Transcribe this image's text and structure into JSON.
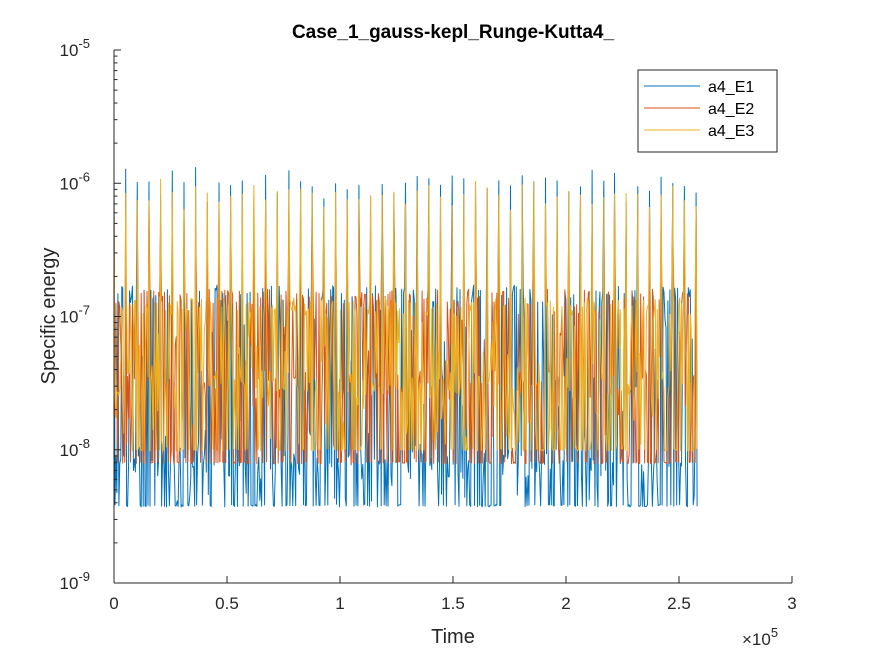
{
  "chart_data": {
    "type": "line",
    "title": "Case_1_gauss-kepl_Runge-Kutta4_",
    "xlabel": "Time",
    "ylabel": "Specific energy",
    "x_exponent_label": "×10",
    "x_exponent": "5",
    "xlim": [
      0,
      300000
    ],
    "ylim": [
      1e-09,
      1e-05
    ],
    "yscale": "log",
    "x_tick_values": [
      0,
      50000,
      100000,
      150000,
      200000,
      250000,
      300000
    ],
    "x_tick_labels": [
      "0",
      "0.5",
      "1",
      "1.5",
      "2",
      "2.5",
      "3"
    ],
    "y_tick_values": [
      1e-09,
      1e-08,
      1e-07,
      1e-06,
      1e-05
    ],
    "y_tick_labels": [
      {
        "base": "10",
        "exp": "-9"
      },
      {
        "base": "10",
        "exp": "-8"
      },
      {
        "base": "10",
        "exp": "-7"
      },
      {
        "base": "10",
        "exp": "-6"
      },
      {
        "base": "10",
        "exp": "-5"
      }
    ],
    "grid": false,
    "legend_position": "top-right",
    "series": [
      {
        "name": "a4_E1",
        "color": "#0072BD",
        "x_range": [
          0,
          258000
        ],
        "baseline_levels": [
          3.8e-09,
          7.5e-09,
          1.5e-07
        ],
        "peak_period": 5150,
        "peak_values": [
          1.1e-06,
          1.2e-06,
          1e-06,
          1.25e-06,
          9e-07,
          1.15e-06,
          1.05e-06,
          1.2e-06,
          9.5e-07,
          1.1e-06
        ]
      },
      {
        "name": "a4_E2",
        "color": "#D95319",
        "x_range": [
          0,
          258000
        ],
        "baseline_levels": [
          8e-09,
          3e-08,
          1.4e-07
        ],
        "peak_period": 5150,
        "peak_values": [
          6.5e-07,
          6e-07,
          5.5e-07,
          6.5e-07,
          6e-07
        ]
      },
      {
        "name": "a4_E3",
        "color": "#EDB120",
        "x_range": [
          0,
          258000
        ],
        "baseline_levels": [
          1e-08,
          3e-08,
          1.2e-07
        ],
        "peak_period": 5150,
        "peak_values": [
          1e-06,
          9e-07,
          8e-07,
          9.5e-07
        ]
      }
    ]
  }
}
